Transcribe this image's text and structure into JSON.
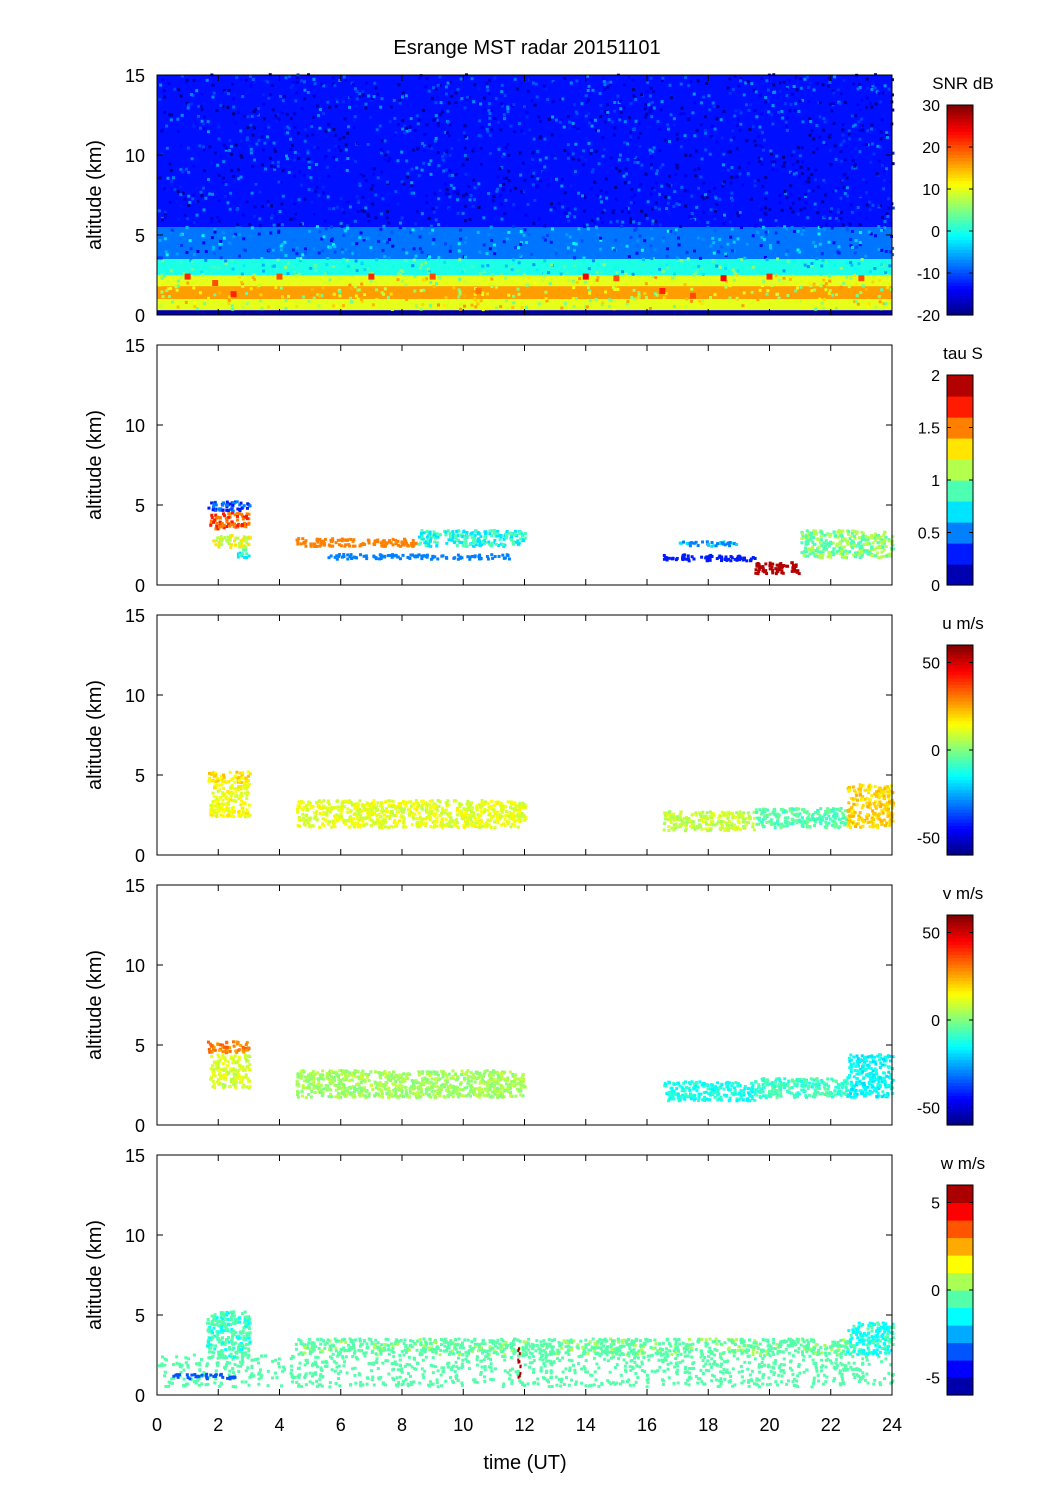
{
  "figure": {
    "title": "Esrange MST radar 20151101",
    "xlabel": "time (UT)",
    "xticks": [
      "0",
      "2",
      "4",
      "6",
      "8",
      "10",
      "12",
      "14",
      "16",
      "18",
      "20",
      "22",
      "24"
    ]
  },
  "chart_data": [
    {
      "type": "heatmap",
      "panel": "snr",
      "ylabel": "altitude (km)",
      "xlim": [
        0,
        24
      ],
      "ylim": [
        0,
        15
      ],
      "yticks": [
        "0",
        "5",
        "10",
        "15"
      ],
      "colorbar": {
        "label": "SNR dB",
        "range": [
          -20,
          30
        ],
        "ticks": [
          "30",
          "20",
          "10",
          "0",
          "-10",
          "-20"
        ],
        "tick_values": [
          30,
          20,
          10,
          0,
          -10,
          -20
        ],
        "levels": 64
      },
      "bands": [
        {
          "t0": 0,
          "t1": 24,
          "z0": 5.5,
          "z1": 15,
          "value": -13
        },
        {
          "t0": 0,
          "t1": 24,
          "z0": 3.5,
          "z1": 5.5,
          "value": -8
        },
        {
          "t0": 0,
          "t1": 24,
          "z0": 2.5,
          "z1": 3.5,
          "value": 0
        },
        {
          "t0": 0,
          "t1": 24,
          "z0": 0.3,
          "z1": 2.5,
          "value": 10
        },
        {
          "t0": 0,
          "t1": 24,
          "z0": 1.0,
          "z1": 1.8,
          "value": 16
        },
        {
          "t0": 0,
          "t1": 24,
          "z0": 0.0,
          "z1": 0.3,
          "value": -18
        }
      ],
      "hotspots": [
        {
          "t": 1.0,
          "z": 2.4,
          "value": 22
        },
        {
          "t": 1.9,
          "z": 2.0,
          "value": 20
        },
        {
          "t": 2.5,
          "z": 1.3,
          "value": 22
        },
        {
          "t": 4.0,
          "z": 2.4,
          "value": 20
        },
        {
          "t": 7.0,
          "z": 2.4,
          "value": 22
        },
        {
          "t": 9.0,
          "z": 2.4,
          "value": 20
        },
        {
          "t": 10.5,
          "z": 1.5,
          "value": 18
        },
        {
          "t": 14.0,
          "z": 2.4,
          "value": 24
        },
        {
          "t": 15.0,
          "z": 2.3,
          "value": 20
        },
        {
          "t": 16.5,
          "z": 1.5,
          "value": 22
        },
        {
          "t": 17.5,
          "z": 1.2,
          "value": 20
        },
        {
          "t": 18.5,
          "z": 2.3,
          "value": 24
        },
        {
          "t": 20.0,
          "z": 2.4,
          "value": 22
        },
        {
          "t": 23.0,
          "z": 2.3,
          "value": 20
        }
      ]
    },
    {
      "type": "heatmap",
      "panel": "tau",
      "ylabel": "altitude (km)",
      "xlim": [
        0,
        24
      ],
      "ylim": [
        0,
        15
      ],
      "yticks": [
        "0",
        "5",
        "10",
        "15"
      ],
      "colorbar": {
        "label": "tau S",
        "range": [
          0,
          2
        ],
        "ticks": [
          "2",
          "1.5",
          "1",
          "0.5",
          "0"
        ],
        "tick_values": [
          2,
          1.5,
          1,
          0.5,
          0
        ],
        "levels": 10
      },
      "clusters": [
        {
          "t0": 1.6,
          "t1": 3.0,
          "z0": 4.7,
          "z1": 5.3,
          "value": 0.4
        },
        {
          "t0": 1.7,
          "t1": 3.0,
          "z0": 3.6,
          "z1": 4.6,
          "value": 1.6
        },
        {
          "t0": 1.8,
          "t1": 3.0,
          "z0": 2.4,
          "z1": 3.2,
          "value": 1.2
        },
        {
          "t0": 2.6,
          "t1": 3.0,
          "z0": 1.8,
          "z1": 2.3,
          "value": 0.8
        },
        {
          "t0": 4.5,
          "t1": 8.5,
          "z0": 2.5,
          "z1": 3.0,
          "value": 1.5
        },
        {
          "t0": 5.5,
          "t1": 11.5,
          "z0": 1.7,
          "z1": 2.0,
          "value": 0.5
        },
        {
          "t0": 8.5,
          "t1": 12.0,
          "z0": 2.5,
          "z1": 3.5,
          "value": 0.8
        },
        {
          "t0": 16.5,
          "t1": 19.5,
          "z0": 1.6,
          "z1": 2.0,
          "value": 0.3
        },
        {
          "t0": 17.0,
          "t1": 19.0,
          "z0": 2.5,
          "z1": 2.8,
          "value": 0.6
        },
        {
          "t0": 19.5,
          "t1": 21.0,
          "z0": 0.8,
          "z1": 1.5,
          "value": 1.9
        },
        {
          "t0": 21.0,
          "t1": 24.0,
          "z0": 1.8,
          "z1": 3.5,
          "value": 1.0
        }
      ]
    },
    {
      "type": "heatmap",
      "panel": "u",
      "ylabel": "altitude (km)",
      "xlim": [
        0,
        24
      ],
      "ylim": [
        0,
        15
      ],
      "yticks": [
        "0",
        "5",
        "10",
        "15"
      ],
      "colorbar": {
        "label": "u m/s",
        "range": [
          -60,
          60
        ],
        "ticks": [
          "50",
          "0",
          "-50"
        ],
        "tick_values": [
          50,
          0,
          -50
        ],
        "levels": 64
      },
      "clusters": [
        {
          "t0": 1.6,
          "t1": 3.0,
          "z0": 4.6,
          "z1": 5.3,
          "value": 18
        },
        {
          "t0": 1.7,
          "t1": 3.0,
          "z0": 2.4,
          "z1": 4.5,
          "value": 14
        },
        {
          "t0": 4.5,
          "t1": 12.0,
          "z0": 1.8,
          "z1": 3.5,
          "value": 12
        },
        {
          "t0": 16.5,
          "t1": 19.5,
          "z0": 1.6,
          "z1": 2.8,
          "value": 8
        },
        {
          "t0": 19.5,
          "t1": 22.5,
          "z0": 1.8,
          "z1": 3.0,
          "value": -5
        },
        {
          "t0": 22.5,
          "t1": 24.0,
          "z0": 1.8,
          "z1": 4.5,
          "value": 20
        }
      ]
    },
    {
      "type": "heatmap",
      "panel": "v",
      "ylabel": "altitude (km)",
      "xlim": [
        0,
        24
      ],
      "ylim": [
        0,
        15
      ],
      "yticks": [
        "0",
        "5",
        "10",
        "15"
      ],
      "colorbar": {
        "label": "v m/s",
        "range": [
          -60,
          60
        ],
        "ticks": [
          "50",
          "0",
          "-50"
        ],
        "tick_values": [
          50,
          0,
          -50
        ],
        "levels": 64
      },
      "clusters": [
        {
          "t0": 1.6,
          "t1": 3.0,
          "z0": 4.6,
          "z1": 5.3,
          "value": 30
        },
        {
          "t0": 1.7,
          "t1": 3.0,
          "z0": 2.4,
          "z1": 4.5,
          "value": 10
        },
        {
          "t0": 4.5,
          "t1": 12.0,
          "z0": 1.8,
          "z1": 3.5,
          "value": 4
        },
        {
          "t0": 16.5,
          "t1": 19.5,
          "z0": 1.6,
          "z1": 2.8,
          "value": -12
        },
        {
          "t0": 19.5,
          "t1": 22.5,
          "z0": 1.8,
          "z1": 3.0,
          "value": -8
        },
        {
          "t0": 22.5,
          "t1": 24.0,
          "z0": 1.8,
          "z1": 4.5,
          "value": -15
        }
      ]
    },
    {
      "type": "heatmap",
      "panel": "w",
      "ylabel": "altitude (km)",
      "xlim": [
        0,
        24
      ],
      "ylim": [
        0,
        15
      ],
      "yticks": [
        "0",
        "5",
        "10",
        "15"
      ],
      "colorbar": {
        "label": "w m/s",
        "range": [
          -6,
          6
        ],
        "ticks": [
          "5",
          "0",
          "-5"
        ],
        "tick_values": [
          5,
          0,
          -5
        ],
        "levels": 12
      },
      "clusters": [
        {
          "t0": 0.0,
          "t1": 24.0,
          "z0": 0.6,
          "z1": 2.6,
          "value": -0.5
        },
        {
          "t0": 1.6,
          "t1": 3.0,
          "z0": 2.4,
          "z1": 5.3,
          "value": -0.8
        },
        {
          "t0": 4.5,
          "t1": 22.5,
          "z0": 2.6,
          "z1": 3.6,
          "value": -0.3
        },
        {
          "t0": 0.5,
          "t1": 2.5,
          "z0": 1.1,
          "z1": 1.4,
          "value": -3.5
        },
        {
          "t0": 22.5,
          "t1": 24.0,
          "z0": 2.6,
          "z1": 4.6,
          "value": -1.2
        },
        {
          "t0": 11.75,
          "t1": 11.85,
          "z0": 1.2,
          "z1": 3.0,
          "value": 6
        }
      ]
    }
  ]
}
